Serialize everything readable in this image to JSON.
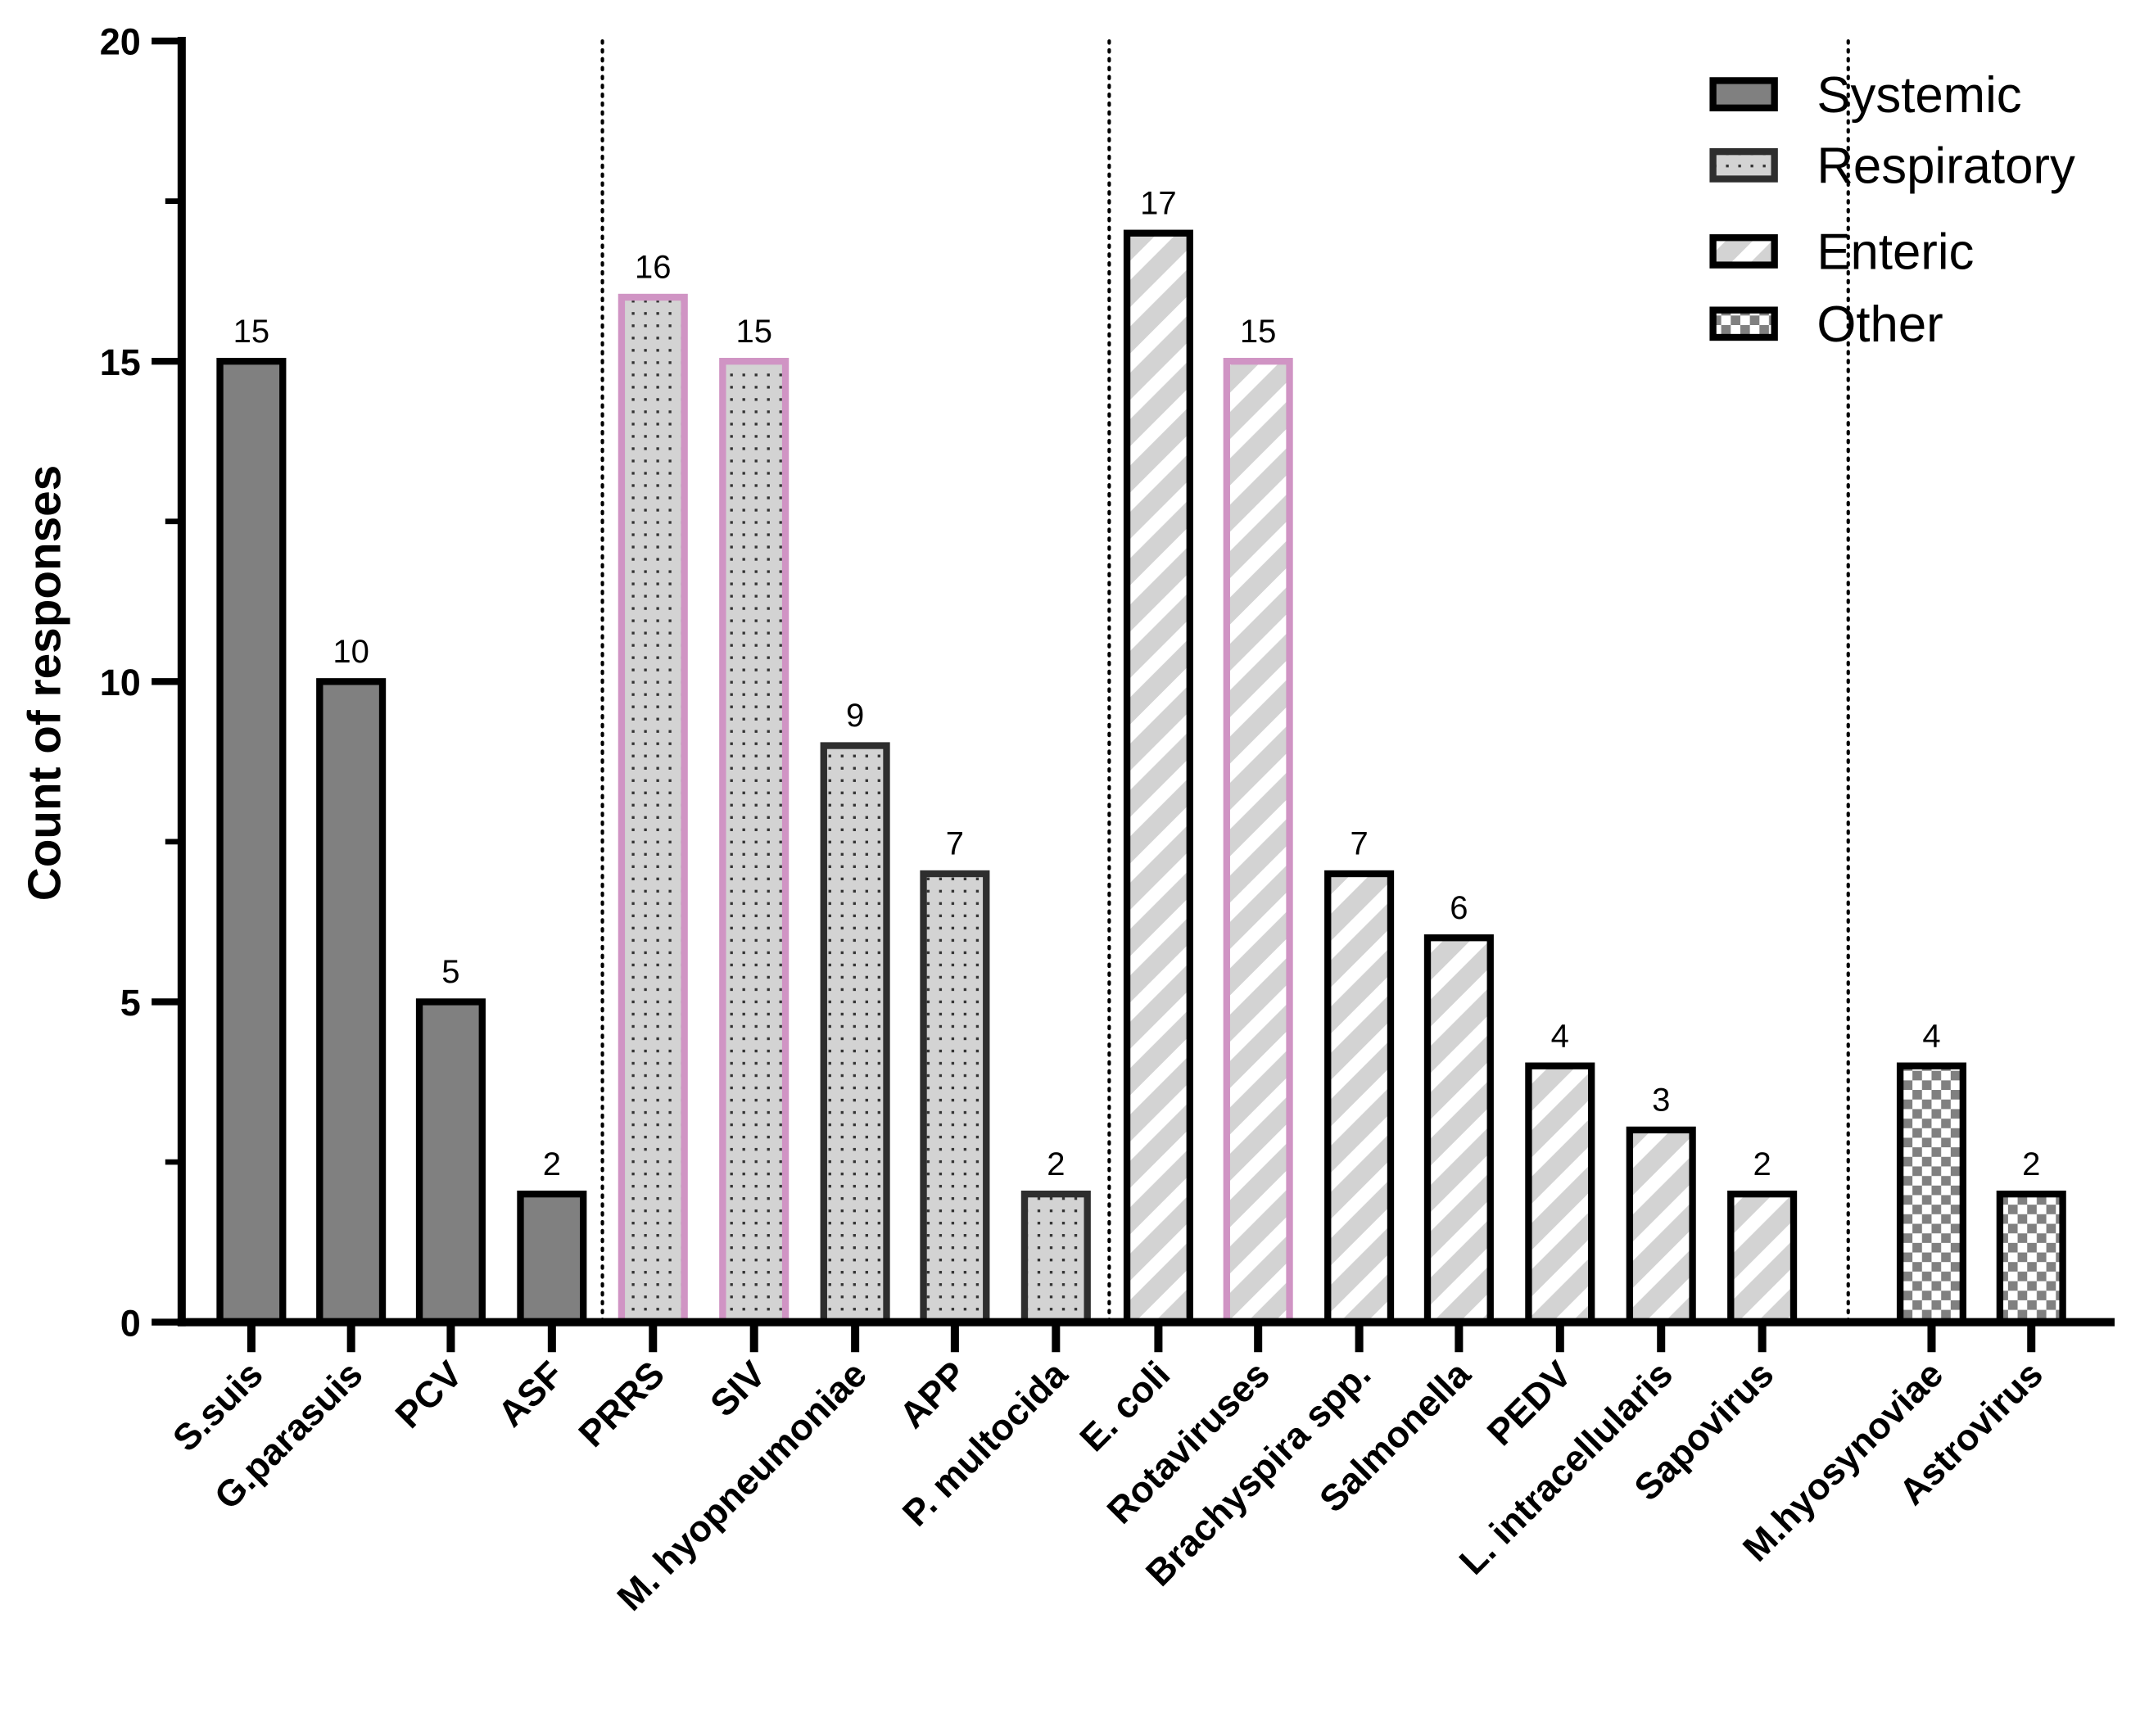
{
  "chart_data": {
    "type": "bar",
    "title": "",
    "xlabel": "",
    "ylabel": "Count of responses",
    "ylim": [
      0,
      20
    ],
    "yticks": [
      0,
      5,
      10,
      15,
      20
    ],
    "grid": false,
    "legend_placement": "top-right",
    "categories": [
      "S.suis",
      "G.parasuis",
      "PCV",
      "ASF",
      "PRRS",
      "SIV",
      "M. hyopneumoniae",
      "APP",
      "P. multocida",
      "E. coli",
      "Rotaviruses",
      "Brachyspira spp.",
      "Salmonella",
      "PEDV",
      "L. intracellularis",
      "Sapovirus",
      "M.hyosynoviae",
      "Astrovirus"
    ],
    "values": [
      15,
      10,
      5,
      2,
      16,
      15,
      9,
      7,
      2,
      17,
      15,
      7,
      6,
      4,
      3,
      2,
      4,
      2
    ],
    "groups": [
      "Systemic",
      "Systemic",
      "Systemic",
      "Systemic",
      "Respiratory",
      "Respiratory",
      "Respiratory",
      "Respiratory",
      "Respiratory",
      "Enteric",
      "Enteric",
      "Enteric",
      "Enteric",
      "Enteric",
      "Enteric",
      "Enteric",
      "Other",
      "Other"
    ],
    "highlighted": [
      "PRRS",
      "SIV",
      "Rotaviruses"
    ],
    "legend": [
      "Systemic",
      "Respiratory",
      "Enteric",
      "Other"
    ],
    "colors": {
      "systemic": "#808080",
      "respiratory": "#d3d3d3",
      "enteric": "#d3d3d3",
      "other": "#808080",
      "highlight_outline": "#d094c4",
      "outline": "#000000"
    }
  }
}
